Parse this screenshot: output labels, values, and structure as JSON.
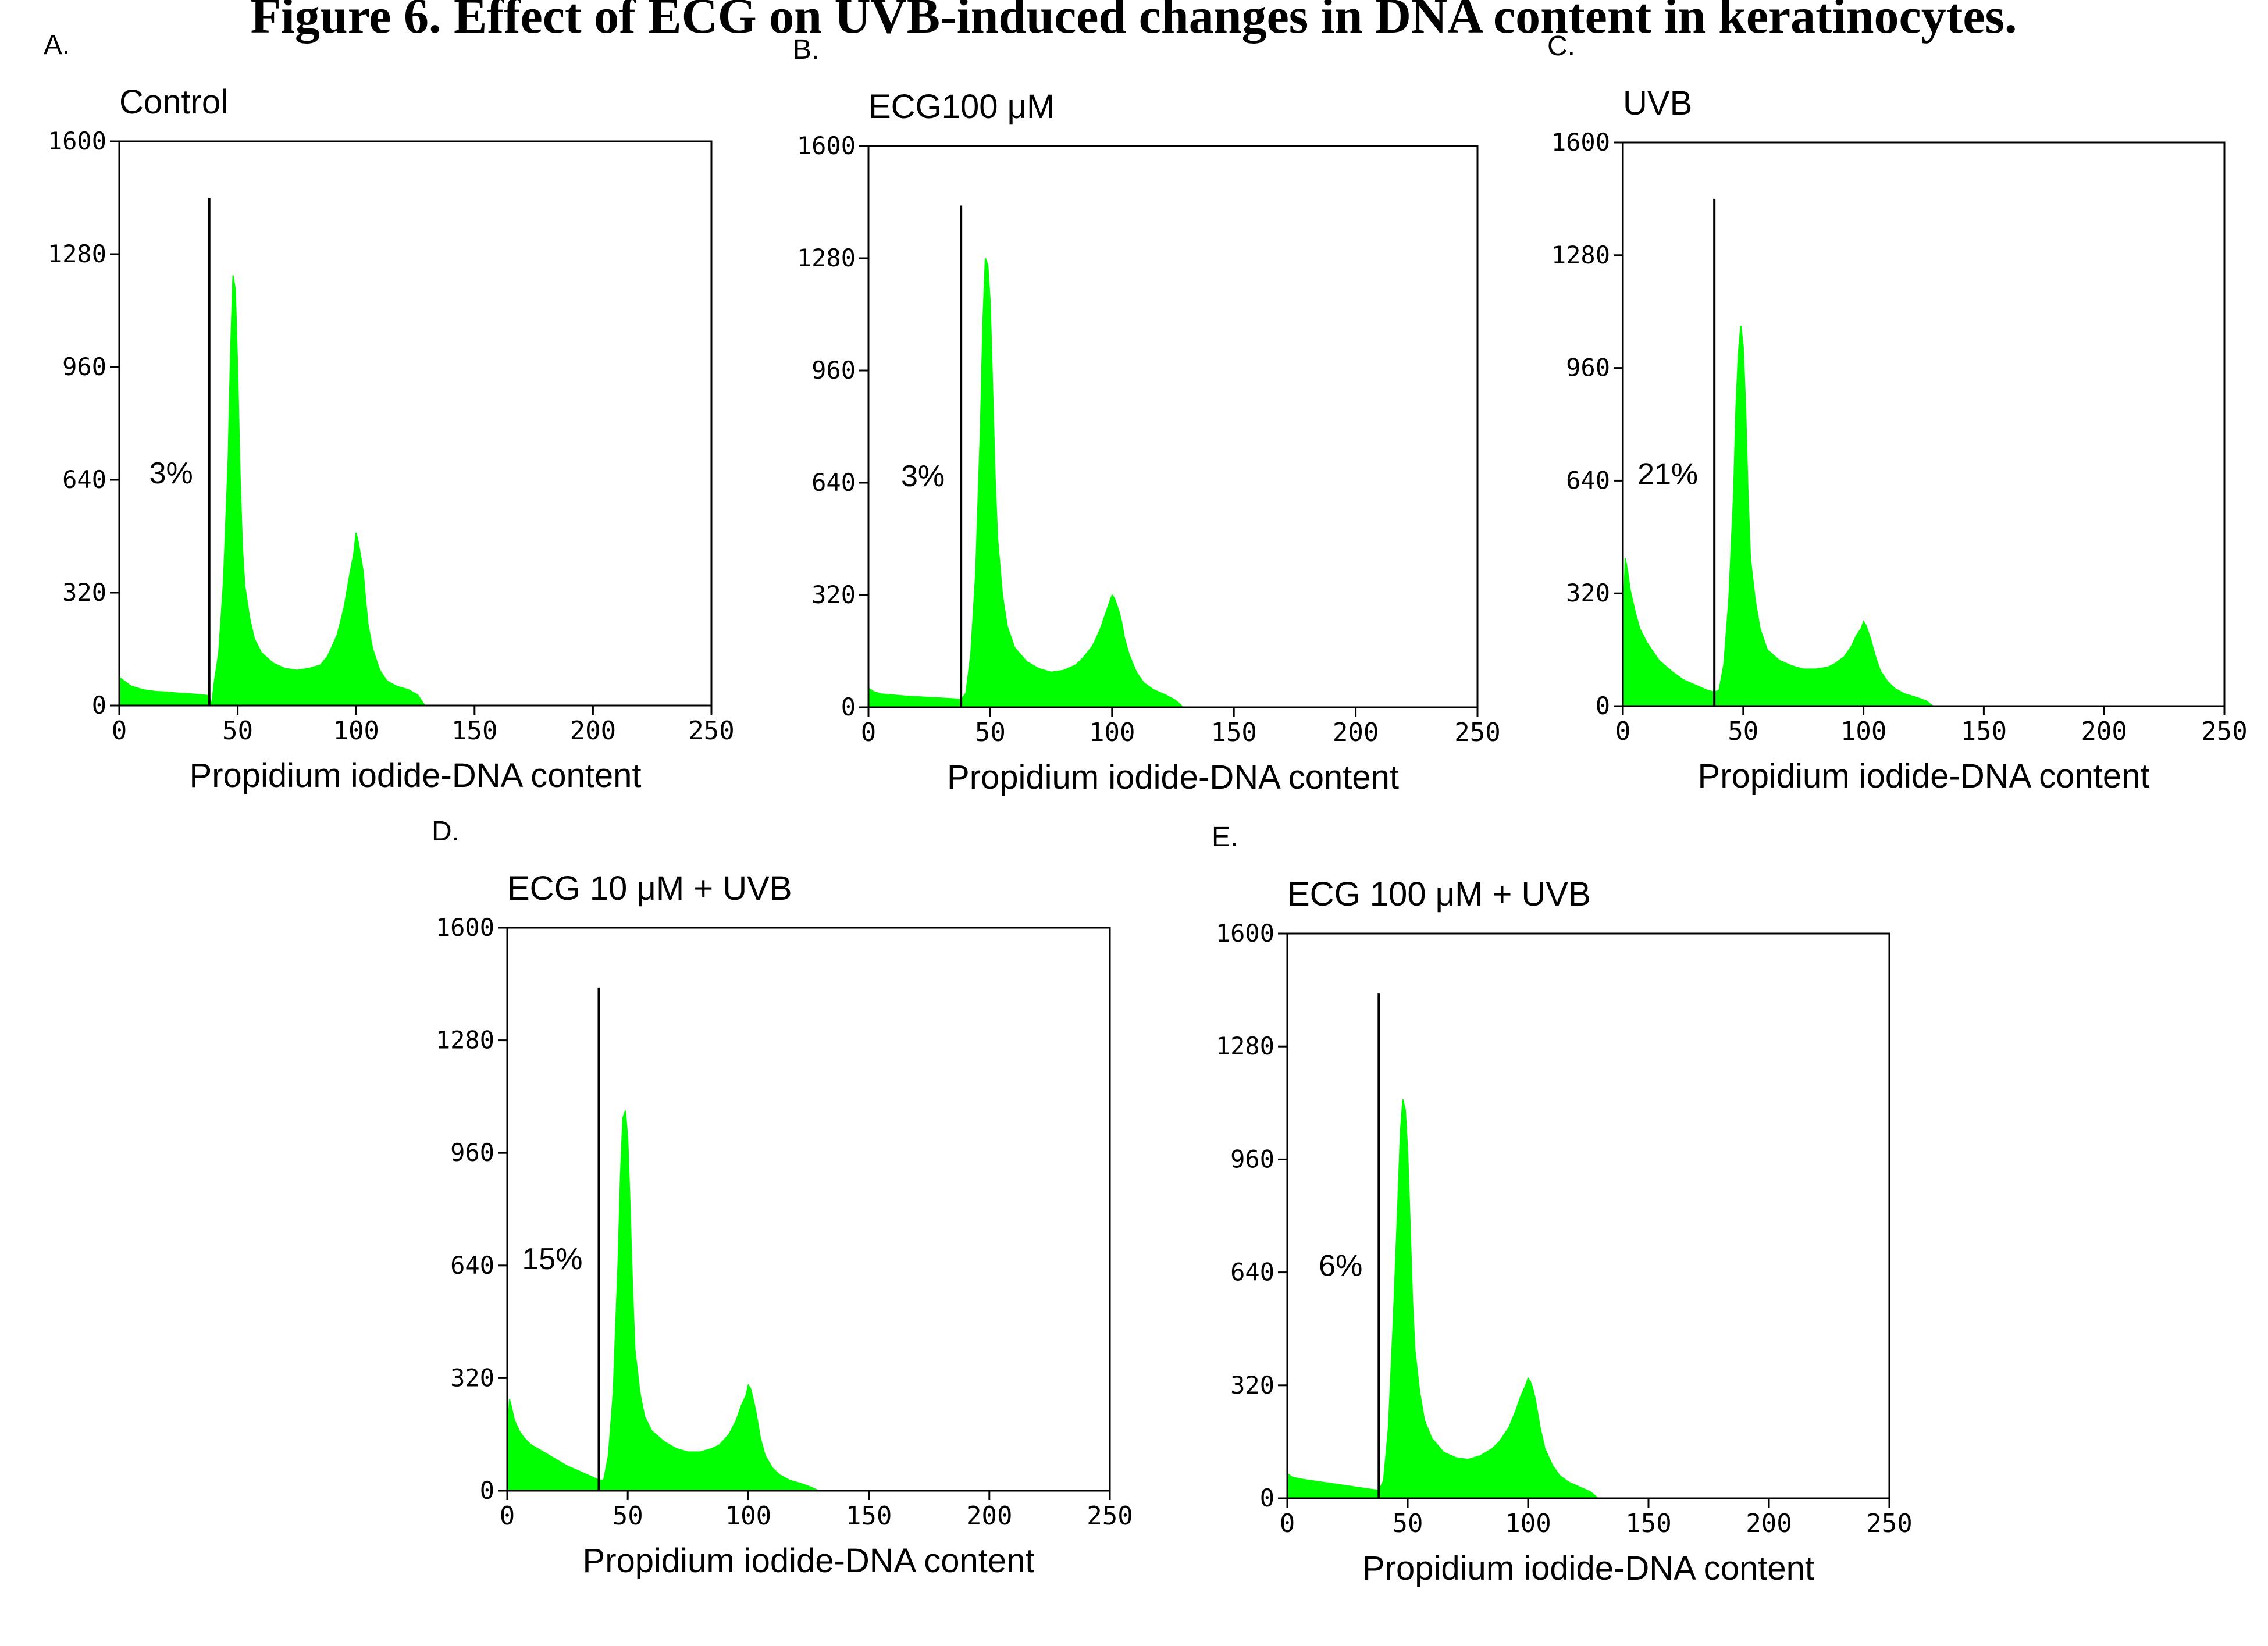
{
  "figure": {
    "title": "Figure 6. Effect of ECG on UVB-induced changes in DNA content in keratinocytes."
  },
  "style": {
    "histogram_color": "#00ff00",
    "axis_color": "#000000",
    "background": "#ffffff"
  },
  "chart_data": [
    {
      "type": "area",
      "panel_label": "A.",
      "title": "Control",
      "xlabel": "Propidium iodide-DNA content",
      "ylabel": "",
      "xlim": [
        0,
        250
      ],
      "ylim": [
        0,
        1600
      ],
      "xticks": [
        "0",
        "50",
        "100",
        "150",
        "200",
        "250"
      ],
      "yticks": [
        "0",
        "320",
        "640",
        "960",
        "1280",
        "1600"
      ],
      "gate": {
        "x": 38,
        "top": 1440
      },
      "annotation": "3%",
      "series": [
        {
          "x": [
            0,
            2,
            5,
            10,
            15,
            20,
            25,
            30,
            35,
            38,
            39,
            40,
            42,
            44,
            46,
            47,
            48,
            49,
            50,
            51,
            52,
            53,
            55,
            57,
            60,
            65,
            70,
            75,
            80,
            85,
            88,
            92,
            95,
            97,
            99,
            100,
            101,
            102,
            103,
            104,
            105,
            107,
            110,
            113,
            117,
            122,
            126,
            128,
            129
          ],
          "y": [
            80,
            70,
            55,
            45,
            40,
            38,
            35,
            33,
            30,
            28,
            0,
            60,
            150,
            350,
            700,
            1000,
            1220,
            1180,
            950,
            650,
            450,
            340,
            250,
            190,
            150,
            120,
            105,
            100,
            105,
            115,
            140,
            200,
            280,
            360,
            430,
            490,
            460,
            420,
            380,
            300,
            230,
            160,
            100,
            70,
            55,
            45,
            30,
            10,
            0
          ]
        }
      ]
    },
    {
      "type": "area",
      "panel_label": "B.",
      "title": "ECG100 μM",
      "xlabel": "Propidium iodide-DNA content",
      "ylabel": "",
      "xlim": [
        0,
        250
      ],
      "ylim": [
        0,
        1600
      ],
      "xticks": [
        "0",
        "50",
        "100",
        "150",
        "200",
        "250"
      ],
      "yticks": [
        "0",
        "320",
        "640",
        "960",
        "1280",
        "1600"
      ],
      "gate": {
        "x": 38,
        "top": 1430
      },
      "annotation": "3%",
      "series": [
        {
          "x": [
            0,
            2,
            5,
            10,
            15,
            20,
            25,
            30,
            35,
            38,
            40,
            42,
            44,
            46,
            47,
            48,
            49,
            50,
            51,
            52,
            53,
            55,
            57,
            60,
            65,
            70,
            75,
            80,
            85,
            88,
            92,
            95,
            97,
            99,
            100,
            101,
            102,
            103,
            104,
            105,
            107,
            110,
            113,
            117,
            122,
            126,
            128,
            129
          ],
          "y": [
            55,
            45,
            38,
            35,
            32,
            30,
            28,
            26,
            24,
            22,
            40,
            150,
            380,
            800,
            1100,
            1280,
            1260,
            1150,
            900,
            650,
            480,
            320,
            230,
            170,
            130,
            110,
            100,
            105,
            120,
            140,
            175,
            220,
            260,
            300,
            320,
            310,
            290,
            270,
            240,
            200,
            150,
            100,
            70,
            50,
            35,
            20,
            8,
            0
          ]
        }
      ]
    },
    {
      "type": "area",
      "panel_label": "C.",
      "title": "UVB",
      "xlabel": "Propidium iodide-DNA content",
      "ylabel": "",
      "xlim": [
        0,
        250
      ],
      "ylim": [
        0,
        1600
      ],
      "xticks": [
        "0",
        "50",
        "100",
        "150",
        "200",
        "250"
      ],
      "yticks": [
        "0",
        "320",
        "640",
        "960",
        "1280",
        "1600"
      ],
      "gate": {
        "x": 38,
        "top": 1440
      },
      "annotation": "21%",
      "series": [
        {
          "x": [
            0,
            1,
            2,
            3,
            5,
            7,
            10,
            15,
            20,
            25,
            30,
            35,
            38,
            40,
            42,
            44,
            46,
            47,
            48,
            49,
            50,
            51,
            52,
            53,
            55,
            57,
            60,
            65,
            70,
            75,
            80,
            85,
            88,
            92,
            95,
            97,
            99,
            100,
            101,
            102,
            103,
            104,
            105,
            107,
            110,
            113,
            117,
            122,
            126,
            128,
            129
          ],
          "y": [
            200,
            420,
            380,
            330,
            270,
            220,
            180,
            130,
            100,
            75,
            60,
            45,
            40,
            45,
            120,
            300,
            600,
            850,
            1000,
            1080,
            1020,
            850,
            600,
            420,
            300,
            220,
            160,
            130,
            115,
            105,
            105,
            110,
            120,
            140,
            170,
            200,
            220,
            240,
            230,
            210,
            190,
            165,
            140,
            100,
            70,
            50,
            35,
            25,
            15,
            5,
            0
          ]
        }
      ]
    },
    {
      "type": "area",
      "panel_label": "D.",
      "title": "ECG 10 μM + UVB",
      "xlabel": "Propidium iodide-DNA content",
      "ylabel": "",
      "xlim": [
        0,
        250
      ],
      "ylim": [
        0,
        1600
      ],
      "xticks": [
        "0",
        "50",
        "100",
        "150",
        "200",
        "250"
      ],
      "yticks": [
        "0",
        "320",
        "640",
        "960",
        "1280",
        "1600"
      ],
      "gate": {
        "x": 38,
        "top": 1430
      },
      "annotation": "15%",
      "series": [
        {
          "x": [
            0,
            1,
            2,
            3,
            5,
            7,
            10,
            15,
            20,
            25,
            30,
            35,
            38,
            40,
            42,
            44,
            46,
            47,
            48,
            49,
            50,
            51,
            52,
            53,
            55,
            57,
            60,
            65,
            70,
            75,
            80,
            85,
            88,
            92,
            95,
            97,
            99,
            100,
            101,
            102,
            103,
            104,
            105,
            107,
            110,
            113,
            117,
            122,
            126,
            128,
            129
          ],
          "y": [
            150,
            260,
            230,
            200,
            170,
            150,
            130,
            110,
            90,
            70,
            55,
            40,
            30,
            30,
            100,
            280,
            650,
            900,
            1060,
            1080,
            1000,
            800,
            570,
            400,
            280,
            210,
            170,
            140,
            120,
            110,
            110,
            120,
            130,
            160,
            200,
            240,
            270,
            300,
            290,
            260,
            230,
            190,
            150,
            100,
            65,
            45,
            30,
            20,
            10,
            4,
            0
          ]
        }
      ]
    },
    {
      "type": "area",
      "panel_label": "E.",
      "title": "ECG 100  μM + UVB",
      "xlabel": "Propidium iodide-DNA content",
      "ylabel": "",
      "xlim": [
        0,
        250
      ],
      "ylim": [
        0,
        1600
      ],
      "xticks": [
        "0",
        "50",
        "100",
        "150",
        "200",
        "250"
      ],
      "yticks": [
        "0",
        "320",
        "640",
        "960",
        "1280",
        "1600"
      ],
      "gate": {
        "x": 38,
        "top": 1430
      },
      "annotation": "6%",
      "series": [
        {
          "x": [
            0,
            2,
            5,
            10,
            15,
            20,
            25,
            30,
            35,
            38,
            40,
            42,
            44,
            46,
            47,
            48,
            49,
            50,
            51,
            52,
            53,
            55,
            57,
            60,
            65,
            70,
            75,
            80,
            85,
            88,
            92,
            95,
            97,
            99,
            100,
            101,
            102,
            103,
            104,
            105,
            107,
            110,
            113,
            117,
            122,
            126,
            128,
            129
          ],
          "y": [
            70,
            60,
            55,
            50,
            45,
            40,
            35,
            30,
            25,
            22,
            50,
            200,
            500,
            850,
            1040,
            1130,
            1100,
            980,
            780,
            560,
            420,
            300,
            220,
            170,
            130,
            115,
            110,
            120,
            140,
            160,
            200,
            250,
            290,
            320,
            340,
            330,
            310,
            280,
            240,
            200,
            140,
            95,
            65,
            45,
            30,
            18,
            6,
            0
          ]
        }
      ]
    }
  ]
}
